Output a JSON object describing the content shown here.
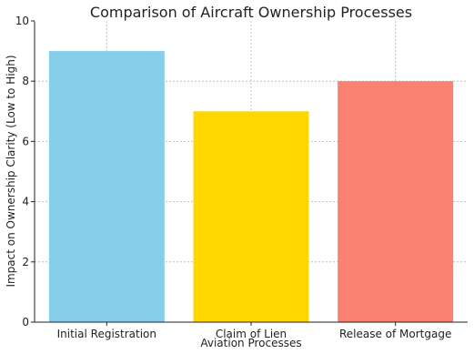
{
  "chart_data": {
    "type": "bar",
    "title": "Comparison of Aircraft Ownership Processes",
    "xlabel": "Aviation Processes",
    "ylabel": "Impact on Ownership Clarity (Low to High)",
    "categories": [
      "Initial Registration",
      "Claim of Lien",
      "Release of Mortgage"
    ],
    "values": [
      9,
      7,
      8
    ],
    "colors": [
      "#87CEEB",
      "#FFD700",
      "#FA8072"
    ],
    "ylim": [
      0,
      10
    ],
    "yticks": [
      "0",
      "2",
      "4",
      "6",
      "8",
      "10"
    ],
    "grid": true,
    "legend": "none"
  }
}
